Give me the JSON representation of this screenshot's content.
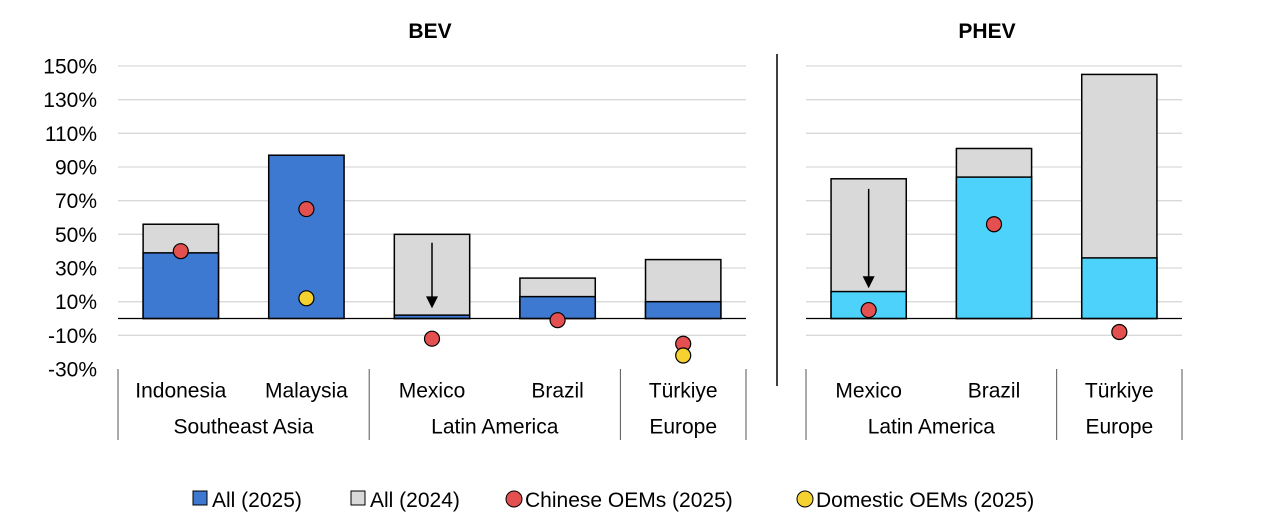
{
  "chart_data": [
    {
      "type": "bar",
      "title": "BEV",
      "ylim": [
        -30,
        150
      ],
      "yticks": [
        "150%",
        "130%",
        "110%",
        "90%",
        "70%",
        "50%",
        "30%",
        "10%",
        "-10%",
        "-30%"
      ],
      "categories": [
        "Indonesia",
        "Malaysia",
        "Mexico",
        "Brazil",
        "Türkiye"
      ],
      "groups": [
        {
          "label": "Southeast Asia",
          "members": [
            "Indonesia",
            "Malaysia"
          ]
        },
        {
          "label": "Latin America",
          "members": [
            "Mexico",
            "Brazil"
          ]
        },
        {
          "label": "Europe",
          "members": [
            "Türkiye"
          ]
        }
      ],
      "series": [
        {
          "name": "All (2025)",
          "kind": "bar",
          "color": "#3d79d1",
          "values": [
            39,
            97,
            2,
            13,
            10
          ]
        },
        {
          "name": "All (2024)",
          "kind": "bar",
          "color": "#d9d9d9",
          "values": [
            56,
            null,
            50,
            24,
            35
          ]
        },
        {
          "name": "Chinese OEMs (2025)",
          "kind": "marker",
          "color": "#e44f4f",
          "values": [
            40,
            65,
            -12,
            -1,
            -15
          ]
        },
        {
          "name": "Domestic OEMs (2025)",
          "kind": "marker",
          "color": "#f5d230",
          "values": [
            null,
            12,
            null,
            null,
            -22
          ]
        }
      ],
      "arrows": [
        {
          "category": "Mexico",
          "from": 45,
          "to": 6
        }
      ]
    },
    {
      "type": "bar",
      "title": "PHEV",
      "ylim": [
        -30,
        150
      ],
      "categories": [
        "Mexico",
        "Brazil",
        "Türkiye"
      ],
      "groups": [
        {
          "label": "Latin America",
          "members": [
            "Mexico",
            "Brazil"
          ]
        },
        {
          "label": "Europe",
          "members": [
            "Türkiye"
          ]
        }
      ],
      "series": [
        {
          "name": "All (2025)",
          "kind": "bar",
          "color": "#4dd2fb",
          "values": [
            16,
            84,
            36
          ]
        },
        {
          "name": "All (2024)",
          "kind": "bar",
          "color": "#d9d9d9",
          "values": [
            83,
            101,
            145
          ]
        },
        {
          "name": "Chinese OEMs (2025)",
          "kind": "marker",
          "color": "#e44f4f",
          "values": [
            5,
            56,
            -8
          ]
        }
      ],
      "arrows": [
        {
          "category": "Mexico",
          "from": 77,
          "to": 18
        }
      ]
    }
  ],
  "legend": [
    {
      "label": "All (2025)",
      "shape": "square",
      "color": "#3d79d1"
    },
    {
      "label": "All (2024)",
      "shape": "square",
      "color": "#d9d9d9"
    },
    {
      "label": "Chinese OEMs (2025)",
      "shape": "circle",
      "color": "#e44f4f"
    },
    {
      "label": "Domestic OEMs (2025)",
      "shape": "circle",
      "color": "#f5d230"
    }
  ]
}
